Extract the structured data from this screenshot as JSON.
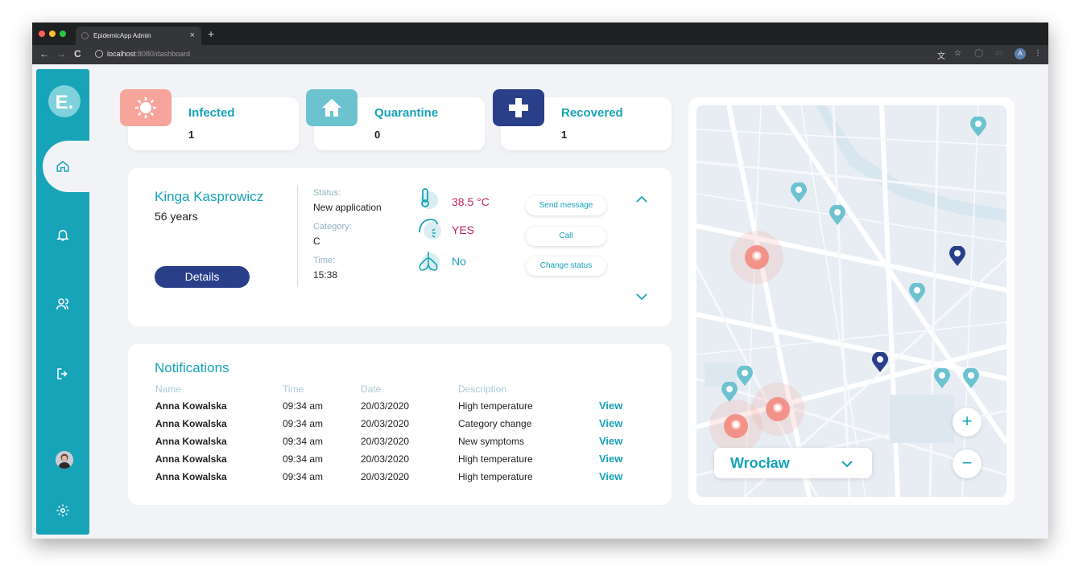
{
  "browser": {
    "tab_title": "EpidemicApp Admin",
    "url_host": "localhost",
    "url_path": ":8080/dashboard",
    "profile_initial": "A"
  },
  "sidebar": {
    "logo": "E.",
    "items": [
      {
        "icon": "home-icon",
        "active": true
      },
      {
        "icon": "bell-icon"
      },
      {
        "icon": "users-icon"
      },
      {
        "icon": "logout-icon"
      },
      {
        "icon": "avatar"
      },
      {
        "icon": "gear-icon"
      }
    ]
  },
  "stats": [
    {
      "label": "Infected",
      "value": "1",
      "color": "#f7a59c",
      "icon": "virus-icon"
    },
    {
      "label": "Quarantine",
      "value": "0",
      "color": "#6cc3cf",
      "icon": "house-icon"
    },
    {
      "label": "Recovered",
      "value": "1",
      "color": "#2a3f8a",
      "icon": "plus-icon"
    }
  ],
  "patient": {
    "name": "Kinga Kasprowicz",
    "age": "56 years",
    "details_label": "Details",
    "status_label": "Status:",
    "status_value": "New application",
    "category_label": "Category:",
    "category_value": "C",
    "time_label": "Time:",
    "time_value": "15:38",
    "temperature": "38.5 °C",
    "cough": "YES",
    "breathing": "No",
    "actions": [
      "Send message",
      "Call",
      "Change status"
    ]
  },
  "notifications": {
    "title": "Notifications",
    "headers": {
      "name": "Name",
      "time": "Time",
      "date": "Date",
      "description": "Description"
    },
    "view_label": "View",
    "rows": [
      {
        "name": "Anna Kowalska",
        "time": "09:34 am",
        "date": "20/03/2020",
        "description": "High temperature"
      },
      {
        "name": "Anna Kowalska",
        "time": "09:34 am",
        "date": "20/03/2020",
        "description": "Category change"
      },
      {
        "name": "Anna Kowalska",
        "time": "09:34 am",
        "date": "20/03/2020",
        "description": "New symptoms"
      },
      {
        "name": "Anna Kowalska",
        "time": "09:34 am",
        "date": "20/03/2020",
        "description": "High temperature"
      },
      {
        "name": "Anna Kowalska",
        "time": "09:34 am",
        "date": "20/03/2020",
        "description": "High temperature"
      }
    ]
  },
  "map": {
    "city": "Wrocław",
    "zoom_in": "+",
    "zoom_out": "−",
    "colors": {
      "pin_teal": "#6cc3cf",
      "pin_navy": "#2a3f8a",
      "hotspot": "#f2938a"
    }
  }
}
